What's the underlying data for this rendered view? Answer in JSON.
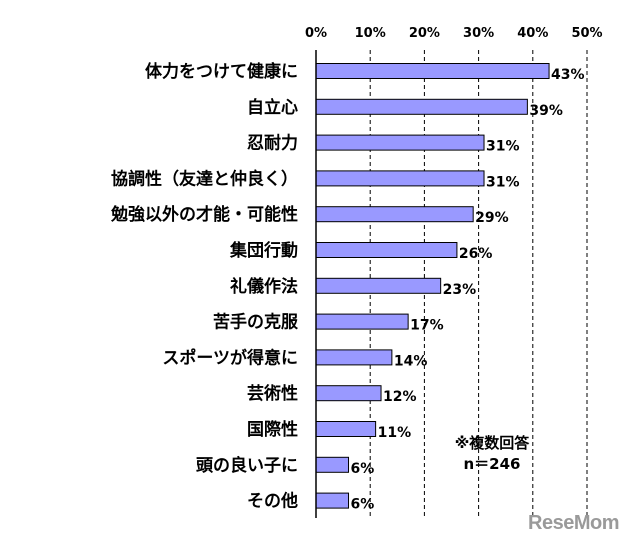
{
  "chart_data": {
    "type": "bar",
    "orientation": "horizontal",
    "categories": [
      "体力をつけて健康に",
      "自立心",
      "忍耐力",
      "協調性（友達と仲良く）",
      "勉強以外の才能・可能性",
      "集団行動",
      "礼儀作法",
      "苦手の克服",
      "スポーツが得意に",
      "芸術性",
      "国際性",
      "頭の良い子に",
      "その他"
    ],
    "values": [
      43,
      39,
      31,
      31,
      29,
      26,
      23,
      17,
      14,
      12,
      11,
      6,
      6
    ],
    "data_labels": [
      "43%",
      "39%",
      "31%",
      "31%",
      "29%",
      "26%",
      "23%",
      "17%",
      "14%",
      "12%",
      "11%",
      "6%",
      "6%"
    ],
    "x_ticks": [
      "0%",
      "10%",
      "20%",
      "30%",
      "40%",
      "50%"
    ],
    "xlim": [
      0,
      50
    ],
    "grid": "vertical dashed",
    "bar_color": "#9999ff",
    "bar_border_color": "#000000"
  },
  "annotation": {
    "line1": "※複数回答",
    "line2": "n＝246"
  },
  "watermark": "ReseMom"
}
